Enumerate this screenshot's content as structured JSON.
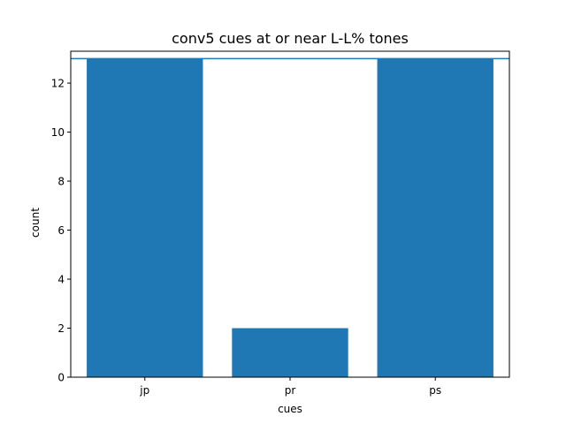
{
  "chart_data": {
    "type": "bar",
    "title": "conv5 cues at or near L-L% tones",
    "xlabel": "cues",
    "ylabel": "count",
    "categories": [
      "jp",
      "pr",
      "ps"
    ],
    "values": [
      13,
      2,
      13
    ],
    "ylim": [
      0,
      13.3
    ],
    "yticks": [
      0,
      2,
      4,
      6,
      8,
      10,
      12
    ],
    "reference_line": 13,
    "grid": false,
    "colors": {
      "bar": "#1f77b4",
      "line": "#1f77b4",
      "axis": "#000000"
    }
  }
}
